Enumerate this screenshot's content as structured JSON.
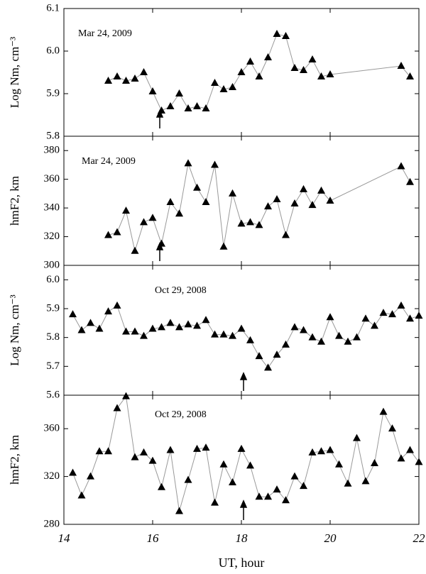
{
  "chart_data": [
    {
      "type": "line",
      "annotation": "Mar 24, 2009",
      "ylabel": "Log Nm, cm⁻³",
      "color": "#000000",
      "x": [
        15.0,
        15.2,
        15.4,
        15.6,
        15.8,
        16.0,
        16.2,
        16.4,
        16.6,
        16.8,
        17.0,
        17.2,
        17.4,
        17.6,
        17.8,
        18.0,
        18.2,
        18.4,
        18.6,
        18.8,
        19.0,
        19.2,
        19.4,
        19.6,
        19.8,
        20.0,
        21.6,
        21.8
      ],
      "values": [
        5.93,
        5.94,
        5.93,
        5.935,
        5.95,
        5.905,
        5.86,
        5.87,
        5.9,
        5.865,
        5.87,
        5.865,
        5.925,
        5.91,
        5.915,
        5.95,
        5.975,
        5.94,
        5.985,
        6.04,
        6.035,
        5.96,
        5.955,
        5.98,
        5.94,
        5.945,
        5.965,
        5.94
      ],
      "ylim": [
        5.8,
        6.1
      ],
      "yticks": [
        5.8,
        5.9,
        {
          "value": 6,
          "label": "6.0"
        },
        6.1
      ]
    },
    {
      "type": "line",
      "annotation": "Mar 24, 2009",
      "ylabel": "hmF2, km",
      "color": "#000000",
      "x": [
        15.0,
        15.2,
        15.4,
        15.6,
        15.8,
        16.0,
        16.2,
        16.4,
        16.6,
        16.8,
        17.0,
        17.2,
        17.4,
        17.6,
        17.8,
        18.0,
        18.2,
        18.4,
        18.6,
        18.8,
        19.0,
        19.2,
        19.4,
        19.6,
        19.8,
        20.0,
        21.6,
        21.8
      ],
      "values": [
        321,
        323,
        338,
        310,
        330,
        333,
        315,
        344,
        336,
        371,
        354,
        344,
        370,
        313,
        350,
        329,
        330,
        328,
        341,
        346,
        321,
        343,
        353,
        342,
        352,
        345,
        369,
        358
      ],
      "ylim": [
        300,
        390
      ],
      "yticks": [
        300,
        320,
        340,
        360,
        380
      ]
    },
    {
      "type": "line",
      "annotation": "Oct 29, 2008",
      "ylabel": "Log Nm, cm⁻³",
      "color": "#000000",
      "x": [
        14.2,
        14.4,
        14.6,
        14.8,
        15.0,
        15.2,
        15.4,
        15.6,
        15.8,
        16.0,
        16.2,
        16.4,
        16.6,
        16.8,
        17.0,
        17.2,
        17.4,
        17.6,
        17.8,
        18.0,
        18.2,
        18.4,
        18.6,
        18.8,
        19.0,
        19.2,
        19.4,
        19.6,
        19.8,
        20.0,
        20.2,
        20.4,
        20.6,
        20.8,
        21.0,
        21.2,
        21.4,
        21.6,
        21.8,
        22.0
      ],
      "values": [
        5.88,
        5.825,
        5.85,
        5.83,
        5.89,
        5.91,
        5.82,
        5.82,
        5.805,
        5.83,
        5.835,
        5.85,
        5.835,
        5.845,
        5.84,
        5.86,
        5.81,
        5.81,
        5.805,
        5.83,
        5.79,
        5.735,
        5.695,
        5.74,
        5.775,
        5.835,
        5.825,
        5.8,
        5.785,
        5.87,
        5.805,
        5.785,
        5.8,
        5.865,
        5.84,
        5.885,
        5.88,
        5.91,
        5.865,
        5.875
      ],
      "ylim": [
        5.6,
        6.05
      ],
      "yticks": [
        5.6,
        5.7,
        5.8,
        5.9,
        {
          "value": 6,
          "label": "6.0"
        }
      ]
    },
    {
      "type": "line",
      "annotation": "Oct 29, 2008",
      "ylabel": "hmF2, km",
      "color": "#000000",
      "x": [
        14.2,
        14.4,
        14.6,
        14.8,
        15.0,
        15.2,
        15.4,
        15.6,
        15.8,
        16.0,
        16.2,
        16.4,
        16.6,
        16.8,
        17.0,
        17.2,
        17.4,
        17.6,
        17.8,
        18.0,
        18.2,
        18.4,
        18.6,
        18.8,
        19.0,
        19.2,
        19.4,
        19.6,
        19.8,
        20.0,
        20.2,
        20.4,
        20.6,
        20.8,
        21.0,
        21.2,
        21.4,
        21.6,
        21.8,
        22.0
      ],
      "values": [
        323,
        304,
        320,
        341,
        341,
        377,
        387,
        336,
        340,
        333,
        311,
        342,
        291,
        317,
        343,
        344,
        298,
        330,
        315,
        343,
        329,
        303,
        303,
        309,
        300,
        320,
        312,
        340,
        341,
        342,
        330,
        314,
        352,
        316,
        331,
        374,
        360,
        335,
        342,
        332
      ],
      "ylim": [
        280,
        388
      ],
      "yticks": [
        280,
        320,
        360
      ],
      "xlabel": "UT, hour",
      "xlim": [
        14,
        22
      ],
      "xticks": [
        14,
        16,
        18,
        20,
        22
      ]
    }
  ]
}
